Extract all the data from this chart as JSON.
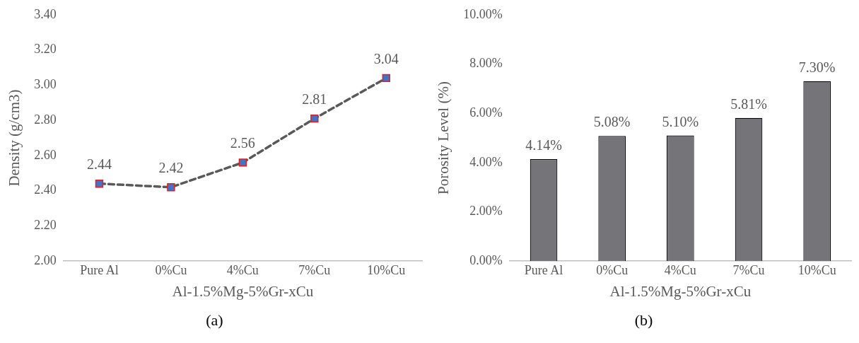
{
  "chart_data": [
    {
      "type": "line",
      "xlabel": "Al-1.5%Mg-5%Gr-xCu",
      "ylabel": "Density (g/cm3)",
      "categories": [
        "Pure Al",
        "0%Cu",
        "4%Cu",
        "7%Cu",
        "10%Cu"
      ],
      "series": [
        {
          "color": "#4472c4",
          "values": [
            2.44,
            2.42,
            2.56,
            2.81,
            3.04
          ]
        }
      ],
      "ylim": [
        2.0,
        3.4
      ],
      "yticks": [
        {
          "value": 2.0,
          "label": "2.00"
        },
        {
          "value": 2.2,
          "label": "2.20"
        },
        {
          "value": 2.4,
          "label": "2.40"
        },
        {
          "value": 2.6,
          "label": "2.60"
        },
        {
          "value": 2.8,
          "label": "2.80"
        },
        {
          "value": 3.0,
          "label": "3.00"
        },
        {
          "value": 3.2,
          "label": "3.20"
        },
        {
          "value": 3.4,
          "label": "3.40"
        }
      ],
      "marker": "square",
      "line_style": "dashed",
      "data_labels": true,
      "grid": false,
      "legend": false,
      "annotations": [
        "(a)"
      ]
    },
    {
      "type": "bar",
      "xlabel": "Al-1.5%Mg-5%Gr-xCu",
      "ylabel": "Porosity Level (%)",
      "categories": [
        "Pure Al",
        "0%Cu",
        "4%Cu",
        "7%Cu",
        "10%Cu"
      ],
      "series": [
        {
          "color": "#757579",
          "values": [
            4.14,
            5.08,
            5.1,
            5.81,
            7.3
          ],
          "value_labels": [
            "4.14%",
            "5.08%",
            "5.10%",
            "5.81%",
            "7.30%"
          ]
        }
      ],
      "ylim": [
        0,
        10
      ],
      "yticks": [
        {
          "value": 0,
          "label": "0.00%"
        },
        {
          "value": 2,
          "label": "2.00%"
        },
        {
          "value": 4,
          "label": "4.00%"
        },
        {
          "value": 6,
          "label": "6.00%"
        },
        {
          "value": 8,
          "label": "8.00%"
        },
        {
          "value": 10,
          "label": "10.00%"
        }
      ],
      "grid": false,
      "legend": false,
      "annotations": [
        "(b)"
      ]
    }
  ]
}
